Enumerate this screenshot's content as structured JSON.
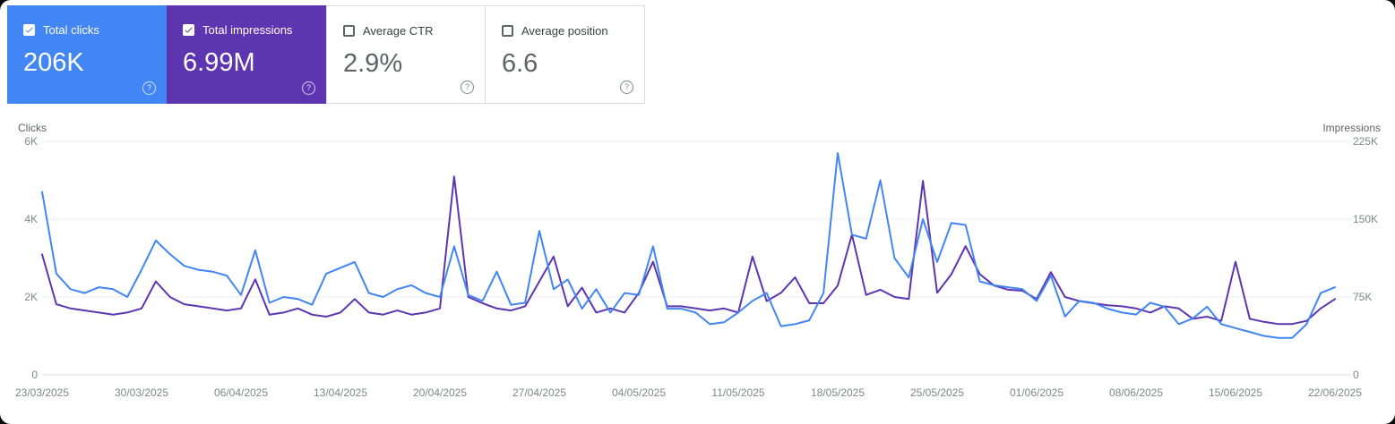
{
  "icons": {
    "help": "?"
  },
  "cards": [
    {
      "label": "Total clicks",
      "value": "206K",
      "checked": true,
      "selected": true,
      "color": "#4285f4"
    },
    {
      "label": "Total impressions",
      "value": "6.99M",
      "checked": true,
      "selected": true,
      "color": "#5e35b1"
    },
    {
      "label": "Average CTR",
      "value": "2.9%",
      "checked": false,
      "selected": false,
      "color": "#ffffff"
    },
    {
      "label": "Average position",
      "value": "6.6",
      "checked": false,
      "selected": false,
      "color": "#ffffff"
    }
  ],
  "chart_data": {
    "type": "line",
    "x_tick_labels": [
      "23/03/2025",
      "30/03/2025",
      "06/04/2025",
      "13/04/2025",
      "20/04/2025",
      "27/04/2025",
      "04/05/2025",
      "11/05/2025",
      "18/05/2025",
      "25/05/2025",
      "01/06/2025",
      "08/06/2025",
      "15/06/2025",
      "22/06/2025"
    ],
    "left_axis": {
      "title": "Clicks",
      "max": 6000,
      "tick_values": [
        0,
        2000,
        4000,
        6000
      ],
      "ticks": [
        "0",
        "2K",
        "4K",
        "6K"
      ]
    },
    "right_axis": {
      "title": "Impressions",
      "max": 225000,
      "tick_values": [
        0,
        75000,
        150000,
        225000
      ],
      "ticks": [
        "0",
        "75K",
        "150K",
        "225K"
      ]
    },
    "grid": true,
    "legend_position": "cards-top",
    "series": [
      {
        "id": "total-clicks",
        "name": "Total clicks",
        "axis": "left",
        "color": "#4285f4",
        "values": [
          4700,
          2600,
          2200,
          2100,
          2250,
          2200,
          2000,
          2700,
          3450,
          3100,
          2800,
          2700,
          2650,
          2550,
          2050,
          3200,
          1850,
          2000,
          1950,
          1800,
          2600,
          2750,
          2900,
          2100,
          2000,
          2200,
          2300,
          2100,
          2000,
          3300,
          2050,
          1900,
          2650,
          1800,
          1850,
          3700,
          2200,
          2450,
          1700,
          2200,
          1600,
          2100,
          2050,
          3300,
          1700,
          1700,
          1600,
          1300,
          1350,
          1600,
          1900,
          2100,
          1250,
          1300,
          1400,
          2100,
          5700,
          3600,
          3500,
          5000,
          3000,
          2500,
          4000,
          2900,
          3900,
          3850,
          2400,
          2300,
          2250,
          2200,
          1900,
          2550,
          1500,
          1900,
          1850,
          1700,
          1600,
          1550,
          1850,
          1750,
          1300,
          1450,
          1750,
          1300,
          1200,
          1100,
          1000,
          950,
          950,
          1300,
          2100,
          2250
        ]
      },
      {
        "id": "total-impressions",
        "name": "Total impressions",
        "axis": "right",
        "color": "#5e35b1",
        "values": [
          116000,
          68000,
          64000,
          62000,
          60000,
          58000,
          60000,
          64000,
          90000,
          75000,
          68000,
          66000,
          64000,
          62000,
          64000,
          92000,
          58000,
          60000,
          64000,
          58000,
          56000,
          60000,
          73000,
          60000,
          58000,
          62000,
          58000,
          60000,
          64000,
          191000,
          75000,
          69000,
          64000,
          62000,
          66000,
          90000,
          114000,
          66000,
          84000,
          60000,
          64000,
          60000,
          79000,
          109000,
          66000,
          66000,
          64000,
          62000,
          64000,
          60000,
          114000,
          71000,
          79000,
          94000,
          69000,
          69000,
          86000,
          135000,
          77000,
          82000,
          75000,
          73000,
          187000,
          79000,
          97000,
          124000,
          97000,
          86000,
          82000,
          81000,
          73000,
          99000,
          75000,
          71000,
          69000,
          67000,
          66000,
          64000,
          60000,
          66000,
          64000,
          54000,
          56000,
          52000,
          109000,
          54000,
          51000,
          49000,
          49000,
          52000,
          64000,
          73000
        ]
      }
    ]
  }
}
